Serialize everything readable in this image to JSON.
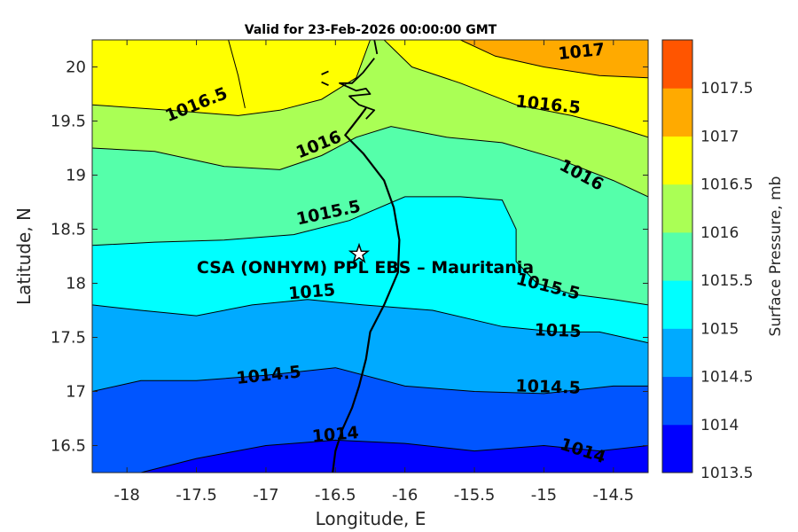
{
  "title": "Valid for 23-Feb-2026 00:00:00 GMT",
  "colors": {
    "levels": [
      "#0000ff",
      "#0055ff",
      "#00aaff",
      "#00ffff",
      "#55ffaa",
      "#aaff55",
      "#ffff00",
      "#ffaa00",
      "#ff5500"
    ],
    "coastline": "#000000",
    "contour_line": "#000000"
  },
  "chart_data": {
    "type": "contour-map",
    "xlabel": "Longitude, E",
    "ylabel": "Latitude, N",
    "xlim": [
      -18.25,
      -14.25
    ],
    "ylim": [
      16.25,
      20.25
    ],
    "xticks": [
      -18,
      -17.5,
      -17,
      -16.5,
      -16,
      -15.5,
      -15,
      -14.5
    ],
    "xtick_labels": [
      "-18",
      "-17.5",
      "-17",
      "-16.5",
      "-16",
      "-15.5",
      "-15",
      "-14.5"
    ],
    "yticks": [
      16.5,
      17,
      17.5,
      18,
      18.5,
      19,
      19.5,
      20
    ],
    "ytick_labels": [
      "16.5",
      "17",
      "17.5",
      "18",
      "18.5",
      "19",
      "19.5",
      "20"
    ],
    "colorbar": {
      "label": "Surface Pressure, mb",
      "bounds": [
        1013.5,
        1014,
        1014.5,
        1015,
        1015.5,
        1016,
        1016.5,
        1017,
        1017.5
      ],
      "tick_labels": [
        "1013.5",
        "1014",
        "1014.5",
        "1015",
        "1015.5",
        "1016",
        "1016.5",
        "1017",
        "1017.5"
      ]
    },
    "contours": [
      {
        "level": 1014,
        "points": [
          [
            -18.25,
            16.25
          ],
          [
            -17.9,
            16.25
          ],
          [
            -17.5,
            16.38
          ],
          [
            -17.0,
            16.5
          ],
          [
            -16.5,
            16.55
          ],
          [
            -16.0,
            16.52
          ],
          [
            -15.5,
            16.45
          ],
          [
            -15.0,
            16.5
          ],
          [
            -14.6,
            16.45
          ],
          [
            -14.25,
            16.5
          ]
        ]
      },
      {
        "level": 1014.5,
        "points": [
          [
            -18.25,
            17.0
          ],
          [
            -17.9,
            17.1
          ],
          [
            -17.5,
            17.1
          ],
          [
            -17.0,
            17.15
          ],
          [
            -16.5,
            17.22
          ],
          [
            -16.0,
            17.05
          ],
          [
            -15.5,
            17.0
          ],
          [
            -15.0,
            16.98
          ],
          [
            -14.5,
            17.05
          ],
          [
            -14.25,
            17.05
          ]
        ]
      },
      {
        "level": 1015,
        "points": [
          [
            -18.25,
            17.8
          ],
          [
            -17.9,
            17.75
          ],
          [
            -17.5,
            17.7
          ],
          [
            -17.1,
            17.8
          ],
          [
            -16.7,
            17.85
          ],
          [
            -16.3,
            17.8
          ],
          [
            -15.8,
            17.75
          ],
          [
            -15.3,
            17.6
          ],
          [
            -14.9,
            17.55
          ],
          [
            -14.6,
            17.55
          ],
          [
            -14.25,
            17.45
          ]
        ]
      },
      {
        "level": 1015.5,
        "points": [
          [
            -18.25,
            18.35
          ],
          [
            -17.8,
            18.38
          ],
          [
            -17.3,
            18.4
          ],
          [
            -16.8,
            18.45
          ],
          [
            -16.4,
            18.58
          ],
          [
            -16.0,
            18.8
          ],
          [
            -15.6,
            18.8
          ],
          [
            -15.3,
            18.77
          ],
          [
            -15.2,
            18.5
          ],
          [
            -15.2,
            18.2
          ],
          [
            -15.05,
            18.0
          ],
          [
            -14.8,
            17.9
          ],
          [
            -14.5,
            17.85
          ],
          [
            -14.25,
            17.8
          ]
        ]
      },
      {
        "level": 1016,
        "points": [
          [
            -18.25,
            19.25
          ],
          [
            -17.8,
            19.22
          ],
          [
            -17.3,
            19.08
          ],
          [
            -16.9,
            19.05
          ],
          [
            -16.6,
            19.18
          ],
          [
            -16.35,
            19.35
          ],
          [
            -16.1,
            19.45
          ],
          [
            -15.7,
            19.35
          ],
          [
            -15.3,
            19.3
          ],
          [
            -14.9,
            19.15
          ],
          [
            -14.5,
            18.95
          ],
          [
            -14.25,
            18.8
          ]
        ]
      },
      {
        "level": 1016.5,
        "points": [
          [
            -18.25,
            19.65
          ],
          [
            -17.7,
            19.6
          ],
          [
            -17.2,
            19.55
          ],
          [
            -16.9,
            19.6
          ],
          [
            -16.6,
            19.7
          ],
          [
            -16.35,
            19.9
          ],
          [
            -16.25,
            20.25
          ]
        ]
      },
      {
        "level": 1016.5,
        "points": [
          [
            -16.15,
            20.25
          ],
          [
            -15.95,
            20.0
          ],
          [
            -15.6,
            19.85
          ],
          [
            -15.2,
            19.65
          ],
          [
            -14.8,
            19.55
          ],
          [
            -14.5,
            19.45
          ],
          [
            -14.25,
            19.35
          ]
        ]
      },
      {
        "level": 1017,
        "points": [
          [
            -15.6,
            20.25
          ],
          [
            -15.35,
            20.1
          ],
          [
            -15.0,
            20.0
          ],
          [
            -14.6,
            19.92
          ],
          [
            -14.25,
            19.9
          ]
        ]
      },
      {
        "level": 1016.5,
        "points": [
          [
            -17.27,
            20.25
          ],
          [
            -17.2,
            19.92
          ],
          [
            -17.15,
            19.62
          ]
        ]
      }
    ],
    "contour_labels": [
      {
        "text": "1016.5",
        "lon": -17.5,
        "lat": 19.65,
        "angle": -22
      },
      {
        "text": "1016",
        "lon": -16.62,
        "lat": 19.28,
        "angle": -22
      },
      {
        "text": "1015.5",
        "lon": -16.55,
        "lat": 18.65,
        "angle": -12
      },
      {
        "text": "1015",
        "lon": -16.67,
        "lat": 17.92,
        "angle": -5
      },
      {
        "text": "1014.5",
        "lon": -16.98,
        "lat": 17.15,
        "angle": -6
      },
      {
        "text": "1014",
        "lon": -16.5,
        "lat": 16.6,
        "angle": -5
      },
      {
        "text": "1017",
        "lon": -14.73,
        "lat": 20.14,
        "angle": -6
      },
      {
        "text": "1016.5",
        "lon": -14.97,
        "lat": 19.65,
        "angle": 6
      },
      {
        "text": "1016",
        "lon": -14.73,
        "lat": 19.0,
        "angle": 28
      },
      {
        "text": "1015.5",
        "lon": -14.97,
        "lat": 17.97,
        "angle": 14
      },
      {
        "text": "1015",
        "lon": -14.9,
        "lat": 17.56,
        "angle": 2
      },
      {
        "text": "1014.5",
        "lon": -14.97,
        "lat": 17.04,
        "angle": 2
      },
      {
        "text": "1014",
        "lon": -14.72,
        "lat": 16.45,
        "angle": 18
      }
    ],
    "station": {
      "name": "CSA (ONHYM) PPL EBS  – Mauritania",
      "lon": -16.33,
      "lat": 18.27
    }
  },
  "coastline": [
    [
      [
        -16.52,
        16.25
      ],
      [
        -16.5,
        16.45
      ],
      [
        -16.45,
        16.65
      ],
      [
        -16.38,
        16.85
      ],
      [
        -16.33,
        17.05
      ],
      [
        -16.28,
        17.3
      ],
      [
        -16.25,
        17.55
      ],
      [
        -16.15,
        17.8
      ],
      [
        -16.05,
        18.1
      ],
      [
        -16.04,
        18.4
      ],
      [
        -16.08,
        18.7
      ],
      [
        -16.15,
        18.95
      ],
      [
        -16.3,
        19.2
      ],
      [
        -16.43,
        19.37
      ],
      [
        -16.38,
        19.45
      ],
      [
        -16.32,
        19.55
      ],
      [
        -16.28,
        19.62
      ]
    ],
    [
      [
        -16.22,
        20.08
      ],
      [
        -16.3,
        19.95
      ],
      [
        -16.38,
        19.85
      ],
      [
        -16.47,
        19.85
      ],
      [
        -16.35,
        19.78
      ],
      [
        -16.28,
        19.8
      ],
      [
        -16.25,
        19.75
      ],
      [
        -16.4,
        19.73
      ],
      [
        -16.33,
        19.65
      ],
      [
        -16.22,
        19.6
      ],
      [
        -16.28,
        19.52
      ]
    ],
    [
      [
        -16.2,
        20.12
      ],
      [
        -16.22,
        20.25
      ]
    ],
    [
      [
        -16.6,
        19.93
      ],
      [
        -16.55,
        19.96
      ]
    ],
    [
      [
        -16.55,
        19.83
      ],
      [
        -16.6,
        19.86
      ]
    ]
  ]
}
